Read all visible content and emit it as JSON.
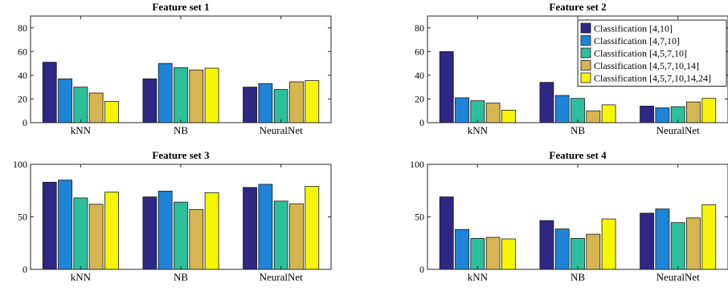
{
  "colors": [
    "#2e2784",
    "#1d84d8",
    "#2fbe9c",
    "#d6b652",
    "#f6f600"
  ],
  "legend": {
    "entries": [
      "Classification [4,10]",
      "Classification [4,7,10]",
      "Classification [4,5,7,10]",
      "Classification [4,5,7,10,14]",
      "Classification [4,5,7,10,14,24]"
    ],
    "placement": "top-right of Feature set 2"
  },
  "chart_data": [
    {
      "type": "bar",
      "title": "Feature set 1",
      "categories": [
        "kNN",
        "NB",
        "NeuralNet"
      ],
      "ylim": [
        0,
        90
      ],
      "yticks": [
        0,
        20,
        40,
        60,
        80
      ],
      "series": [
        {
          "name": "Classification [4,10]",
          "values": [
            51,
            37,
            30
          ]
        },
        {
          "name": "Classification [4,7,10]",
          "values": [
            37,
            50,
            33
          ]
        },
        {
          "name": "Classification [4,5,7,10]",
          "values": [
            30,
            46.5,
            28
          ]
        },
        {
          "name": "Classification [4,5,7,10,14]",
          "values": [
            25,
            44.5,
            34.5
          ]
        },
        {
          "name": "Classification [4,5,7,10,14,24]",
          "values": [
            18,
            46,
            35.5
          ]
        }
      ]
    },
    {
      "type": "bar",
      "title": "Feature set 2",
      "categories": [
        "kNN",
        "NB",
        "NeuralNet"
      ],
      "ylim": [
        0,
        90
      ],
      "yticks": [
        0,
        20,
        40,
        60,
        80
      ],
      "series": [
        {
          "name": "Classification [4,10]",
          "values": [
            60,
            34,
            14
          ]
        },
        {
          "name": "Classification [4,7,10]",
          "values": [
            21,
            23,
            12.5
          ]
        },
        {
          "name": "Classification [4,5,7,10]",
          "values": [
            18.5,
            20.5,
            13.5
          ]
        },
        {
          "name": "Classification [4,5,7,10,14]",
          "values": [
            16.5,
            10,
            17.5
          ]
        },
        {
          "name": "Classification [4,5,7,10,14,24]",
          "values": [
            10.5,
            15,
            20.5
          ]
        }
      ]
    },
    {
      "type": "bar",
      "title": "Feature set 3",
      "categories": [
        "kNN",
        "NB",
        "NeuralNet"
      ],
      "ylim": [
        0,
        100
      ],
      "yticks": [
        0,
        50,
        100
      ],
      "series": [
        {
          "name": "Classification [4,10]",
          "values": [
            83,
            69,
            78
          ]
        },
        {
          "name": "Classification [4,7,10]",
          "values": [
            85,
            74.5,
            81
          ]
        },
        {
          "name": "Classification [4,5,7,10]",
          "values": [
            68,
            64,
            65
          ]
        },
        {
          "name": "Classification [4,5,7,10,14]",
          "values": [
            62,
            57,
            62.5
          ]
        },
        {
          "name": "Classification [4,5,7,10,14,24]",
          "values": [
            73.5,
            73,
            79
          ]
        }
      ]
    },
    {
      "type": "bar",
      "title": "Feature set 4",
      "categories": [
        "kNN",
        "NB",
        "NeuralNet"
      ],
      "ylim": [
        0,
        100
      ],
      "yticks": [
        0,
        50,
        100
      ],
      "series": [
        {
          "name": "Classification [4,10]",
          "values": [
            69,
            46.5,
            53.5
          ]
        },
        {
          "name": "Classification [4,7,10]",
          "values": [
            38,
            38.5,
            57.5
          ]
        },
        {
          "name": "Classification [4,5,7,10]",
          "values": [
            29.5,
            29.5,
            44.5
          ]
        },
        {
          "name": "Classification [4,5,7,10,14]",
          "values": [
            30.5,
            33.5,
            49
          ]
        },
        {
          "name": "Classification [4,5,7,10,14,24]",
          "values": [
            29,
            48,
            61.5
          ]
        }
      ]
    }
  ]
}
